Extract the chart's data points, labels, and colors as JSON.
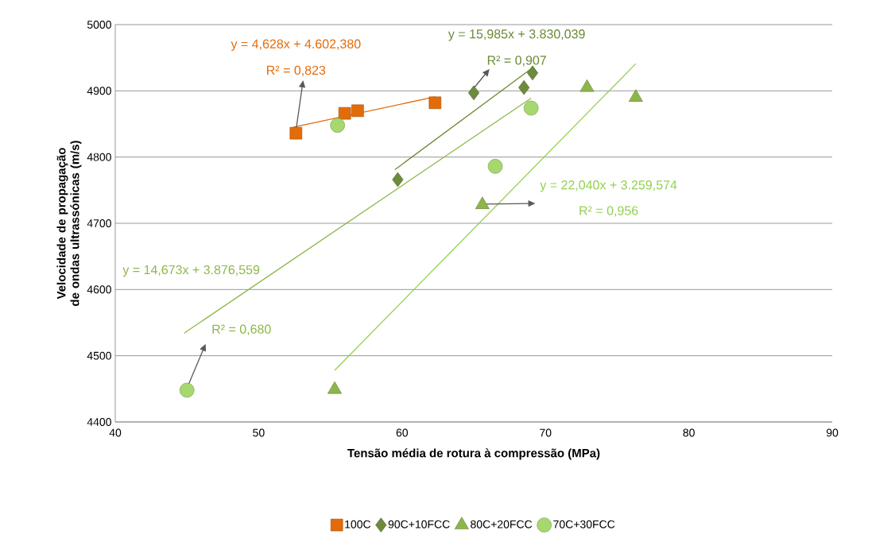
{
  "chart_data": {
    "type": "scatter",
    "xlabel": "Tensão média de rotura à compressão (MPa)",
    "ylabel": "Velocidade de propagação de ondas ultrassónicas (m/s)",
    "xlim": [
      40,
      90
    ],
    "xticks": [
      40,
      50,
      60,
      70,
      80,
      90
    ],
    "ylim": [
      4400,
      5000
    ],
    "yticks": [
      4400,
      4500,
      4600,
      4700,
      4800,
      4900,
      5000
    ],
    "grid": "y",
    "legend": "bottom",
    "series": [
      {
        "name": "100C",
        "marker": "square",
        "color": "#e36c0a",
        "x": [
          52.6,
          56.0,
          56.9,
          62.3
        ],
        "values": [
          4836,
          4866,
          4870,
          4882
        ]
      },
      {
        "name": "90C+10FCC",
        "marker": "diamond",
        "color": "#6e8b3d",
        "x": [
          59.7,
          65.0,
          68.5,
          69.1
        ],
        "values": [
          4766,
          4897,
          4905,
          4927
        ]
      },
      {
        "name": "80C+20FCC",
        "marker": "triangle",
        "color": "#8db64a",
        "x": [
          55.3,
          65.6,
          72.9,
          76.3
        ],
        "values": [
          4449,
          4728,
          4905,
          4890
        ]
      },
      {
        "name": "70C+30FCC",
        "marker": "circle",
        "color": "#a6d86e",
        "x": [
          45.0,
          55.5,
          66.5,
          69.0
        ],
        "values": [
          4448,
          4848,
          4786,
          4874
        ]
      },
      {
        "type": "line",
        "marker": "none",
        "color": "#e46c0a",
        "x": [
          52.4,
          62.3
        ],
        "values": [
          4845,
          4891
        ]
      },
      {
        "type": "line",
        "marker": "none",
        "color": "#6b8a35",
        "x": [
          59.5,
          69.1
        ],
        "values": [
          4781,
          4935
        ]
      },
      {
        "type": "line",
        "marker": "none",
        "color": "#92d050",
        "x": [
          55.3,
          76.3
        ],
        "values": [
          4478,
          4941
        ]
      },
      {
        "type": "line",
        "marker": "none",
        "color": "#8db84a",
        "x": [
          44.8,
          69.0
        ],
        "values": [
          4534,
          4889
        ]
      }
    ],
    "annotations": [
      "y = 4,628x + 4.602,380",
      "R² = 0,823",
      "y = 15,985x + 3.830,039",
      "R² = 0,907",
      "y = 22,040x + 3.259,574",
      "R² = 0,956",
      "y = 14,673x + 3.876,559",
      "R² = 0,680"
    ]
  }
}
